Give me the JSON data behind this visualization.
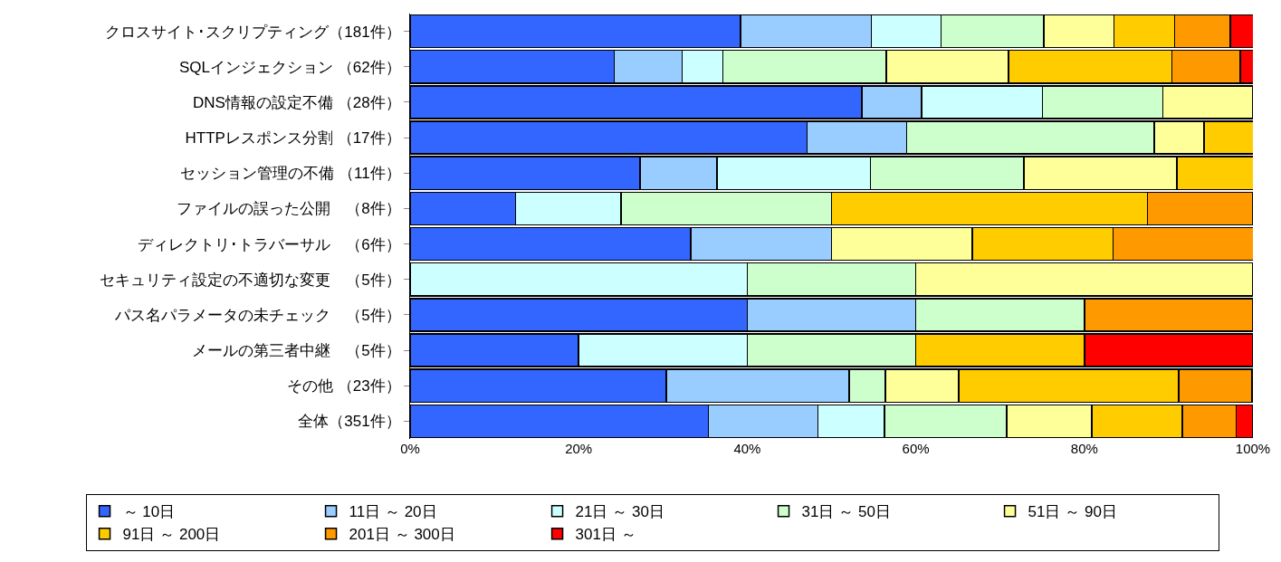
{
  "chart_data": {
    "type": "bar",
    "orientation": "horizontal",
    "stacked": true,
    "categories": [
      "クロスサイト･スクリプティング（181件）",
      "SQLインジェクション （62件）",
      "DNS情報の設定不備 （28件）",
      "HTTPレスポンス分割 （17件）",
      "セッション管理の不備 （11件）",
      "ファイルの誤った公開　（8件）",
      "ディレクトリ･トラバーサル　（6件）",
      "セキュリティ設定の不適切な変更　（5件）",
      "パス名パラメータの未チェック　（5件）",
      "メールの第三者中継　（5件）",
      "その他 （23件）",
      "全体（351件）"
    ],
    "series": [
      {
        "name": "～ 10日",
        "color": "#3366ff",
        "values": [
          39.2,
          24.2,
          53.6,
          47.1,
          27.3,
          12.5,
          33.3,
          0,
          40,
          20,
          30.4,
          35.4
        ]
      },
      {
        "name": "11日 ～ 20日",
        "color": "#99ccff",
        "values": [
          15.5,
          8.1,
          7.1,
          11.8,
          9.1,
          0,
          16.7,
          0,
          20,
          0,
          21.7,
          13.0
        ]
      },
      {
        "name": "21日 ～ 30日",
        "color": "#ccffff",
        "values": [
          8.3,
          4.8,
          14.3,
          0,
          18.2,
          12.5,
          0,
          40,
          0,
          20,
          0,
          7.9
        ]
      },
      {
        "name": "31日 ～ 50日",
        "color": "#ccffcc",
        "values": [
          12.2,
          19.4,
          14.3,
          29.4,
          18.2,
          25,
          0,
          20,
          20,
          20,
          4.3,
          14.5
        ]
      },
      {
        "name": "51日 ～ 90日",
        "color": "#ffff99",
        "values": [
          8.3,
          14.5,
          10.7,
          5.9,
          18.2,
          0,
          16.7,
          40,
          0,
          0,
          8.7,
          10.1
        ]
      },
      {
        "name": "91日 ～ 200日",
        "color": "#ffcc00",
        "values": [
          7.2,
          19.4,
          0,
          5.9,
          9.1,
          37.5,
          16.7,
          0,
          0,
          20,
          26.1,
          10.7
        ]
      },
      {
        "name": "201日 ～ 300日",
        "color": "#ff9900",
        "values": [
          6.6,
          8.1,
          0,
          0,
          0,
          12.5,
          16.7,
          0,
          20,
          0,
          8.7,
          6.4
        ]
      },
      {
        "name": "301日 ～",
        "color": "#ff0000",
        "values": [
          2.8,
          1.6,
          0,
          0,
          0,
          0,
          0,
          0,
          0,
          20,
          0,
          2.0
        ]
      }
    ],
    "xlim": [
      0,
      100
    ],
    "xticks": [
      {
        "value": 0,
        "label": "0%"
      },
      {
        "value": 20,
        "label": "20%"
      },
      {
        "value": 40,
        "label": "40%"
      },
      {
        "value": 60,
        "label": "60%"
      },
      {
        "value": 80,
        "label": "80%"
      },
      {
        "value": 100,
        "label": "100%"
      }
    ],
    "legend": "bottom"
  }
}
